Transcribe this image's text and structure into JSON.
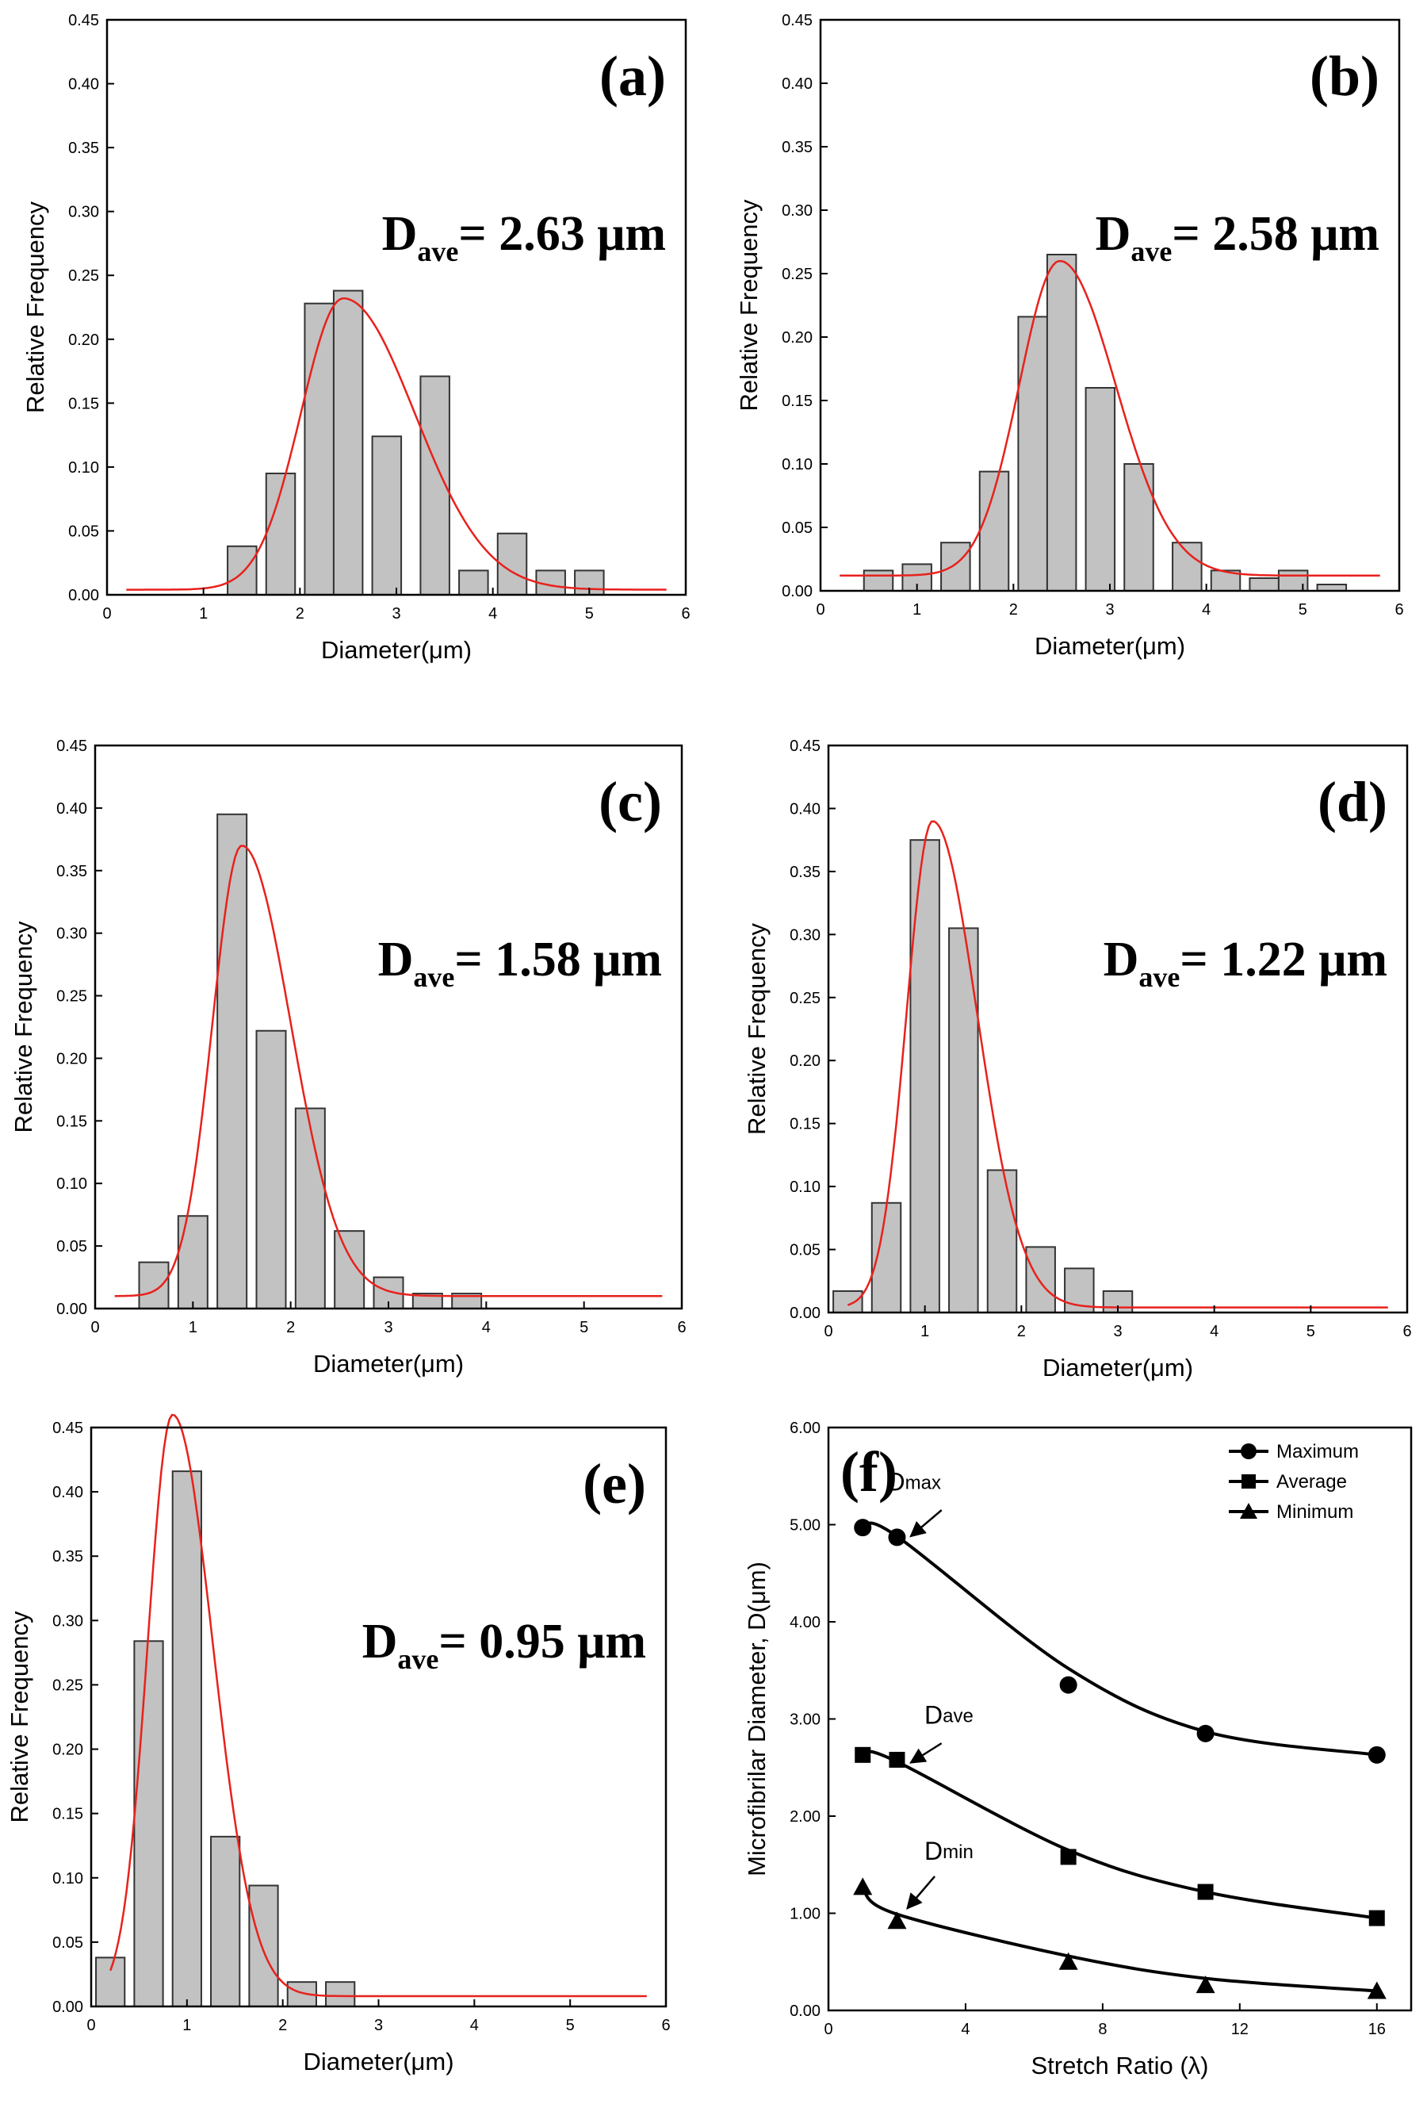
{
  "chart_data": [
    {
      "type": "bar",
      "panel_label": "(a)",
      "annotation": {
        "main": "D",
        "sub": "ave",
        "rest": "= 2.63 μm"
      },
      "xlabel": "Diameter(μm)",
      "ylabel": "Relative Frequency",
      "xlim": [
        0,
        6
      ],
      "ylim": [
        0,
        0.45
      ],
      "xticks": [
        "0",
        "1",
        "2",
        "3",
        "4",
        "5",
        "6"
      ],
      "yticks": [
        "0.00",
        "0.05",
        "0.10",
        "0.15",
        "0.20",
        "0.25",
        "0.30",
        "0.35",
        "0.40",
        "0.45"
      ],
      "bin_width": 0.3,
      "x": [
        1.4,
        1.8,
        2.2,
        2.5,
        2.9,
        3.4,
        3.8,
        4.2,
        4.6,
        5.0
      ],
      "values": [
        0.038,
        0.095,
        0.228,
        0.238,
        0.124,
        0.171,
        0.019,
        0.048,
        0.019,
        0.019
      ],
      "fit_color": "#e8211c",
      "fit": {
        "mode": 2.45,
        "peak": 0.232,
        "sigma_left": 0.44,
        "sigma_right": 0.74,
        "baseline": 0.004,
        "x_start": 0.2,
        "x_end": 5.8
      }
    },
    {
      "type": "bar",
      "panel_label": "(b)",
      "annotation": {
        "main": "D",
        "sub": "ave",
        "rest": "= 2.58 μm"
      },
      "xlabel": "Diameter(μm)",
      "ylabel": "Relative Frequency",
      "xlim": [
        0,
        6
      ],
      "ylim": [
        0,
        0.45
      ],
      "xticks": [
        "0",
        "1",
        "2",
        "3",
        "4",
        "5",
        "6"
      ],
      "yticks": [
        "0.00",
        "0.05",
        "0.10",
        "0.15",
        "0.20",
        "0.25",
        "0.30",
        "0.35",
        "0.40",
        "0.45"
      ],
      "bin_width": 0.3,
      "x": [
        0.6,
        1.0,
        1.4,
        1.8,
        2.2,
        2.5,
        2.9,
        3.3,
        3.8,
        4.2,
        4.6,
        4.9,
        5.3
      ],
      "values": [
        0.016,
        0.021,
        0.038,
        0.094,
        0.216,
        0.265,
        0.16,
        0.1,
        0.038,
        0.016,
        0.01,
        0.016,
        0.005
      ],
      "fit_color": "#e8211c",
      "fit": {
        "mode": 2.48,
        "peak": 0.26,
        "sigma_left": 0.42,
        "sigma_right": 0.58,
        "baseline": 0.012,
        "x_start": 0.2,
        "x_end": 5.8
      }
    },
    {
      "type": "bar",
      "panel_label": "(c)",
      "annotation": {
        "main": "D",
        "sub": "ave",
        "rest": "= 1.58 μm"
      },
      "xlabel": "Diameter(μm)",
      "ylabel": "Relative Frequency",
      "xlim": [
        0,
        6
      ],
      "ylim": [
        0,
        0.45
      ],
      "xticks": [
        "0",
        "1",
        "2",
        "3",
        "4",
        "5",
        "6"
      ],
      "yticks": [
        "0.00",
        "0.05",
        "0.10",
        "0.15",
        "0.20",
        "0.25",
        "0.30",
        "0.35",
        "0.40",
        "0.45"
      ],
      "bin_width": 0.3,
      "x": [
        0.6,
        1.0,
        1.4,
        1.8,
        2.2,
        2.6,
        3.0,
        3.4,
        3.8
      ],
      "values": [
        0.037,
        0.074,
        0.395,
        0.222,
        0.16,
        0.062,
        0.025,
        0.012,
        0.012
      ],
      "fit_color": "#e8211c",
      "fit": {
        "mode": 1.5,
        "peak": 0.37,
        "sigma_left": 0.3,
        "sigma_right": 0.5,
        "baseline": 0.01,
        "x_start": 0.2,
        "x_end": 5.8
      }
    },
    {
      "type": "bar",
      "panel_label": "(d)",
      "annotation": {
        "main": "D",
        "sub": "ave",
        "rest": "= 1.22 μm"
      },
      "xlabel": "Diameter(μm)",
      "ylabel": "Relative Frequency",
      "xlim": [
        0,
        6
      ],
      "ylim": [
        0,
        0.45
      ],
      "xticks": [
        "0",
        "1",
        "2",
        "3",
        "4",
        "5",
        "6"
      ],
      "yticks": [
        "0.00",
        "0.05",
        "0.10",
        "0.15",
        "0.20",
        "0.25",
        "0.30",
        "0.35",
        "0.40",
        "0.45"
      ],
      "bin_width": 0.3,
      "x": [
        0.2,
        0.6,
        1.0,
        1.4,
        1.8,
        2.2,
        2.6,
        3.0
      ],
      "values": [
        0.017,
        0.087,
        0.375,
        0.305,
        0.113,
        0.052,
        0.035,
        0.017
      ],
      "fit_color": "#e8211c",
      "fit": {
        "mode": 1.08,
        "peak": 0.39,
        "sigma_left": 0.27,
        "sigma_right": 0.46,
        "baseline": 0.004,
        "x_start": 0.2,
        "x_end": 5.8
      }
    },
    {
      "type": "bar",
      "panel_label": "(e)",
      "annotation": {
        "main": "D",
        "sub": "ave",
        "rest": "= 0.95 μm"
      },
      "xlabel": "Diameter(μm)",
      "ylabel": "Relative Frequency",
      "xlim": [
        0,
        6
      ],
      "ylim": [
        0,
        0.45
      ],
      "xticks": [
        "0",
        "1",
        "2",
        "3",
        "4",
        "5",
        "6"
      ],
      "yticks": [
        "0.00",
        "0.05",
        "0.10",
        "0.15",
        "0.20",
        "0.25",
        "0.30",
        "0.35",
        "0.40",
        "0.45"
      ],
      "bin_width": 0.3,
      "x": [
        0.2,
        0.6,
        1.0,
        1.4,
        1.8,
        2.2,
        2.6
      ],
      "values": [
        0.038,
        0.284,
        0.416,
        0.132,
        0.094,
        0.019,
        0.019
      ],
      "fit_color": "#e8211c",
      "fit": {
        "mode": 0.85,
        "peak": 0.46,
        "sigma_left": 0.26,
        "sigma_right": 0.42,
        "baseline": 0.008,
        "x_start": 0.2,
        "x_end": 5.8
      }
    },
    {
      "type": "line",
      "panel_label": "(f)",
      "xlabel": "Stretch Ratio (λ)",
      "ylabel": "Microfibrilar Diameter, D(μm)",
      "xlim": [
        0,
        17
      ],
      "ylim": [
        0,
        6
      ],
      "xticks": [
        "0",
        "4",
        "8",
        "12",
        "16"
      ],
      "yticks": [
        "0.00",
        "1.00",
        "2.00",
        "3.00",
        "4.00",
        "5.00",
        "6.00"
      ],
      "x": [
        1,
        2,
        7,
        11,
        16
      ],
      "legend_position": "top-right",
      "series": [
        {
          "name": "Maximum",
          "marker": "circle",
          "values": [
            4.97,
            4.87,
            3.35,
            2.85,
            2.63
          ],
          "fit": [
            4.98,
            4.88,
            3.52,
            2.87,
            2.63
          ],
          "curve_label": {
            "main": "D",
            "sub": "max",
            "x": 1.7,
            "y": 5.35
          }
        },
        {
          "name": "Average",
          "marker": "square",
          "values": [
            2.63,
            2.58,
            1.58,
            1.22,
            0.95
          ],
          "fit": [
            2.66,
            2.56,
            1.65,
            1.22,
            0.95
          ],
          "curve_label": {
            "main": "D",
            "sub": "ave",
            "x": 2.8,
            "y": 2.95
          }
        },
        {
          "name": "Minimum",
          "marker": "triangle",
          "values": [
            1.27,
            0.92,
            0.5,
            0.26,
            0.2
          ],
          "fit": [
            1.24,
            0.99,
            0.56,
            0.33,
            0.2
          ],
          "curve_label": {
            "main": "D",
            "sub": "min",
            "x": 2.8,
            "y": 1.55
          }
        }
      ],
      "arrows": [
        {
          "from": [
            3.3,
            5.15
          ],
          "to": [
            2.4,
            4.88
          ]
        },
        {
          "from": [
            3.3,
            2.75
          ],
          "to": [
            2.4,
            2.55
          ]
        },
        {
          "from": [
            3.1,
            1.38
          ],
          "to": [
            2.3,
            1.05
          ]
        }
      ]
    }
  ]
}
